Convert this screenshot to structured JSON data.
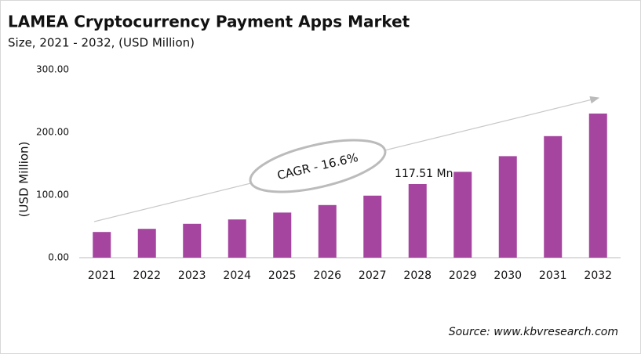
{
  "chart_data": {
    "type": "bar",
    "title": "LAMEA Cryptocurrency Payment Apps Market",
    "subtitle": "Size, 2021 - 2032, (USD Million)",
    "y_label": "(USD Million)",
    "categories": [
      "2021",
      "2022",
      "2023",
      "2024",
      "2025",
      "2026",
      "2027",
      "2028",
      "2029",
      "2030",
      "2031",
      "2032"
    ],
    "values": [
      41,
      46,
      54,
      61,
      72,
      84,
      99,
      117.51,
      137,
      162,
      194,
      230
    ],
    "value_labels": [
      null,
      null,
      null,
      null,
      null,
      null,
      null,
      "117.51 Mn",
      null,
      null,
      null,
      null
    ],
    "color": "#a5459f",
    "ylim": [
      0,
      300
    ],
    "yticks": [
      {
        "value": 0,
        "label": "0.00"
      },
      {
        "value": 100,
        "label": "100.00"
      },
      {
        "value": 200,
        "label": "200.00"
      },
      {
        "value": 300,
        "label": "300.00"
      }
    ],
    "grid": false,
    "annotation": "CAGR - 16.6%",
    "source": "Source: www.kbvresearch.com"
  }
}
